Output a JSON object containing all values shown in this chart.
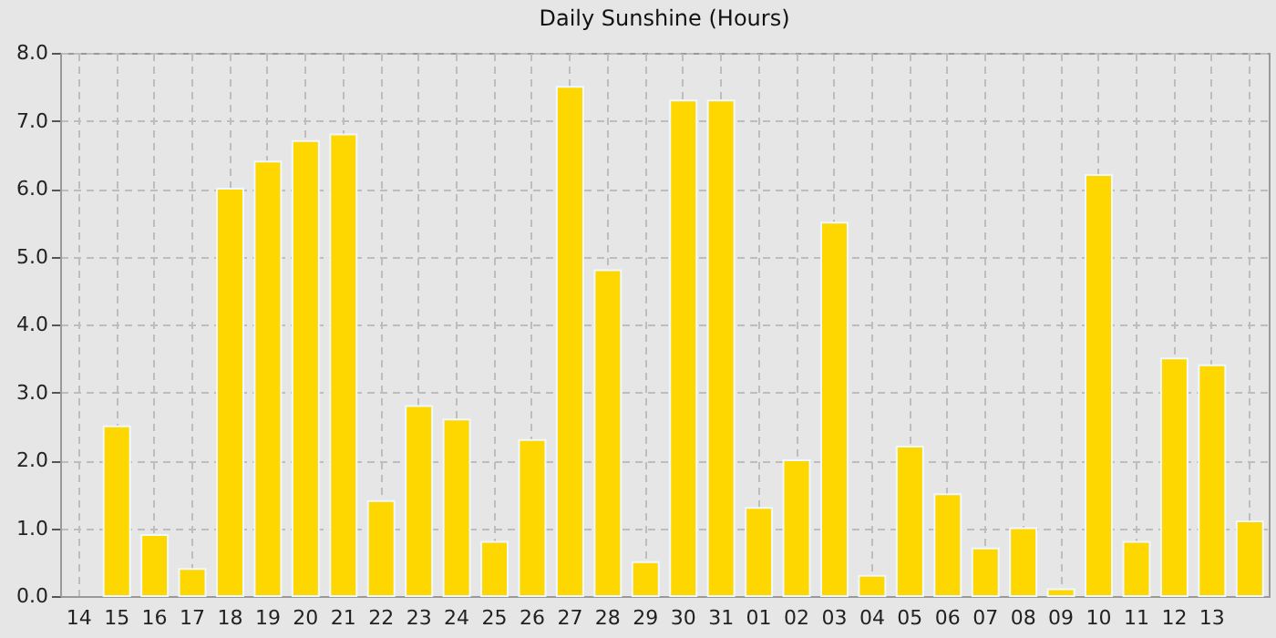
{
  "chart_data": {
    "type": "bar",
    "title": "Daily Sunshine (Hours)",
    "categories": [
      "14",
      "15",
      "16",
      "17",
      "18",
      "19",
      "20",
      "21",
      "22",
      "23",
      "24",
      "25",
      "26",
      "27",
      "28",
      "29",
      "30",
      "31",
      "01",
      "02",
      "03",
      "04",
      "05",
      "06",
      "07",
      "08",
      "09",
      "10",
      "11",
      "12",
      "13",
      null
    ],
    "values": [
      null,
      2.5,
      0.9,
      0.4,
      6.0,
      6.4,
      6.7,
      6.8,
      1.4,
      2.8,
      2.6,
      0.8,
      2.3,
      7.5,
      4.8,
      0.5,
      7.3,
      7.3,
      1.3,
      2.0,
      5.5,
      0.3,
      2.2,
      1.5,
      0.7,
      1.0,
      0.1,
      6.2,
      0.8,
      3.5,
      3.4,
      1.1
    ],
    "color": "#ffd700",
    "ylim": [
      0,
      8
    ],
    "yticks": [
      {
        "value": 0,
        "label": "0.0"
      },
      {
        "value": 1,
        "label": "1.0"
      },
      {
        "value": 2,
        "label": "2.0"
      },
      {
        "value": 3,
        "label": "3.0"
      },
      {
        "value": 4,
        "label": "4.0"
      },
      {
        "value": 5,
        "label": "5.0"
      },
      {
        "value": 6,
        "label": "6.0"
      },
      {
        "value": 7,
        "label": "7.0"
      },
      {
        "value": 8,
        "label": "8.0"
      }
    ],
    "grid": true
  }
}
